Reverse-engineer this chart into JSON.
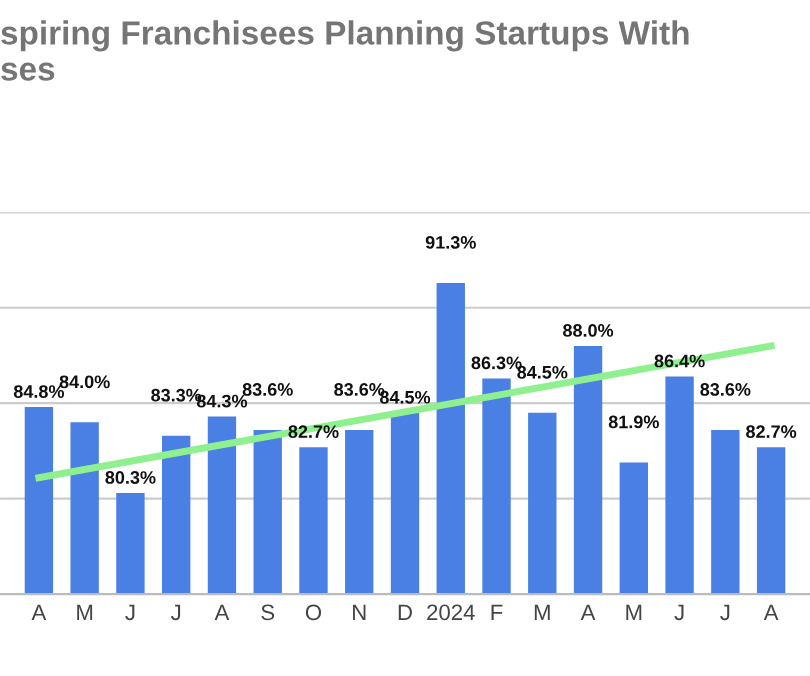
{
  "chart_data": {
    "type": "bar",
    "title": "spiring Franchisees Planning Startups With\nses",
    "categories": [
      "A",
      "M",
      "J",
      "J",
      "A",
      "S",
      "O",
      "N",
      "D",
      "2024",
      "F",
      "M",
      "A",
      "M",
      "J",
      "J",
      "A"
    ],
    "series": [
      {
        "color": "#4a7fe3",
        "values": [
          84.8,
          84.0,
          80.3,
          83.3,
          84.3,
          83.6,
          82.7,
          83.6,
          84.5,
          91.3,
          86.3,
          84.5,
          88.0,
          81.9,
          86.4,
          83.6,
          82.7
        ],
        "value_labels": [
          "84.8%",
          "84.0%",
          "80.3%",
          "83.3%",
          "84.3%",
          "83.6%",
          "82.7%",
          "83.6%",
          "84.5%",
          "91.3%",
          "86.3%",
          "84.5%",
          "88.0%",
          "81.9%",
          "86.4%",
          "83.6%",
          "82.7%"
        ]
      },
      {
        "type": "line",
        "color": "#8ff08f",
        "values": [
          81.1,
          null,
          null,
          null,
          null,
          null,
          null,
          null,
          null,
          null,
          null,
          null,
          null,
          null,
          null,
          null,
          88.0
        ]
      }
    ],
    "ylim": [
      75,
      95
    ],
    "yticks": [
      {
        "value": 75,
        "label": null
      },
      {
        "value": 80,
        "label": null
      },
      {
        "value": 85,
        "label": null
      },
      {
        "value": 90,
        "label": null
      },
      {
        "value": 95,
        "label": null
      }
    ],
    "tick_labels": "x",
    "grid": "y"
  }
}
